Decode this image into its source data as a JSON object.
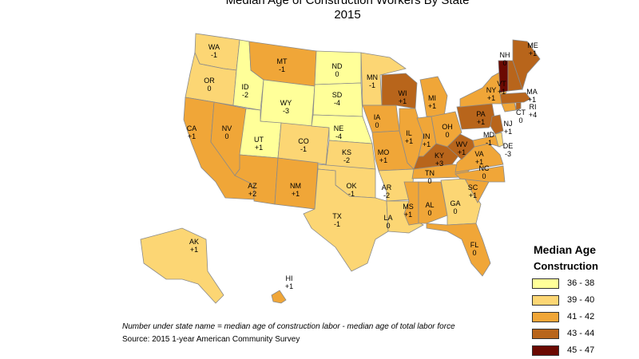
{
  "title_line1": "Median Age of Construction Workers By State",
  "title_line2": "2015",
  "legend": {
    "title": "Median Age",
    "subtitle": "Construction",
    "classes": [
      {
        "label": "36 - 38",
        "color": "#ffff99"
      },
      {
        "label": "39 - 40",
        "color": "#fcd674"
      },
      {
        "label": "41 - 42",
        "color": "#f0a638"
      },
      {
        "label": "43 - 44",
        "color": "#b8651b"
      },
      {
        "label": "45 - 47",
        "color": "#6b0a02"
      }
    ]
  },
  "note": "Number under state name = median age of construction labor - median age of total labor force",
  "source": "Source: 2015 1-year American Community Survey",
  "states": [
    {
      "abbr": "WA",
      "diff": "-1",
      "class": 1
    },
    {
      "abbr": "OR",
      "diff": "0",
      "class": 1
    },
    {
      "abbr": "CA",
      "diff": "+1",
      "class": 2
    },
    {
      "abbr": "ID",
      "diff": "-2",
      "class": 0
    },
    {
      "abbr": "NV",
      "diff": "0",
      "class": 2
    },
    {
      "abbr": "MT",
      "diff": "-1",
      "class": 2
    },
    {
      "abbr": "WY",
      "diff": "-3",
      "class": 0
    },
    {
      "abbr": "UT",
      "diff": "+1",
      "class": 0
    },
    {
      "abbr": "AZ",
      "diff": "+2",
      "class": 2
    },
    {
      "abbr": "CO",
      "diff": "-1",
      "class": 1
    },
    {
      "abbr": "NM",
      "diff": "+1",
      "class": 2
    },
    {
      "abbr": "ND",
      "diff": "0",
      "class": 0
    },
    {
      "abbr": "SD",
      "diff": "-4",
      "class": 0
    },
    {
      "abbr": "NE",
      "diff": "-4",
      "class": 0
    },
    {
      "abbr": "KS",
      "diff": "-2",
      "class": 1
    },
    {
      "abbr": "OK",
      "diff": "-1",
      "class": 1
    },
    {
      "abbr": "TX",
      "diff": "-1",
      "class": 1
    },
    {
      "abbr": "MN",
      "diff": "-1",
      "class": 1
    },
    {
      "abbr": "IA",
      "diff": "0",
      "class": 2
    },
    {
      "abbr": "MO",
      "diff": "+1",
      "class": 2
    },
    {
      "abbr": "AR",
      "diff": "-2",
      "class": 1
    },
    {
      "abbr": "LA",
      "diff": "0",
      "class": 1
    },
    {
      "abbr": "WI",
      "diff": "+1",
      "class": 3
    },
    {
      "abbr": "IL",
      "diff": "+1",
      "class": 2
    },
    {
      "abbr": "MI",
      "diff": "+1",
      "class": 2
    },
    {
      "abbr": "IN",
      "diff": "+1",
      "class": 2
    },
    {
      "abbr": "OH",
      "diff": "0",
      "class": 2
    },
    {
      "abbr": "KY",
      "diff": "+3",
      "class": 3
    },
    {
      "abbr": "TN",
      "diff": "0",
      "class": 2
    },
    {
      "abbr": "MS",
      "diff": "+1",
      "class": 2
    },
    {
      "abbr": "AL",
      "diff": "0",
      "class": 2
    },
    {
      "abbr": "GA",
      "diff": "0",
      "class": 1
    },
    {
      "abbr": "FL",
      "diff": "0",
      "class": 2
    },
    {
      "abbr": "SC",
      "diff": "+1",
      "class": 2
    },
    {
      "abbr": "NC",
      "diff": "0",
      "class": 2
    },
    {
      "abbr": "VA",
      "diff": "+1",
      "class": 2
    },
    {
      "abbr": "WV",
      "diff": "+1",
      "class": 3
    },
    {
      "abbr": "PA",
      "diff": "+1",
      "class": 3
    },
    {
      "abbr": "NY",
      "diff": "+1",
      "class": 2
    },
    {
      "abbr": "MD",
      "diff": "-1",
      "class": 2
    },
    {
      "abbr": "DE",
      "diff": "-3",
      "class": 1
    },
    {
      "abbr": "NJ",
      "diff": "+1",
      "class": 3
    },
    {
      "abbr": "CT",
      "diff": "0",
      "class": 2
    },
    {
      "abbr": "RI",
      "diff": "+4",
      "class": 3
    },
    {
      "abbr": "MA",
      "diff": "+1",
      "class": 3
    },
    {
      "abbr": "VT",
      "diff": "+1",
      "class": 4
    },
    {
      "abbr": "NH",
      "diff": "0",
      "class": 3
    },
    {
      "abbr": "ME",
      "diff": "+1",
      "class": 3
    },
    {
      "abbr": "AK",
      "diff": "+1",
      "class": 1
    },
    {
      "abbr": "HI",
      "diff": "+1",
      "class": 2
    }
  ]
}
